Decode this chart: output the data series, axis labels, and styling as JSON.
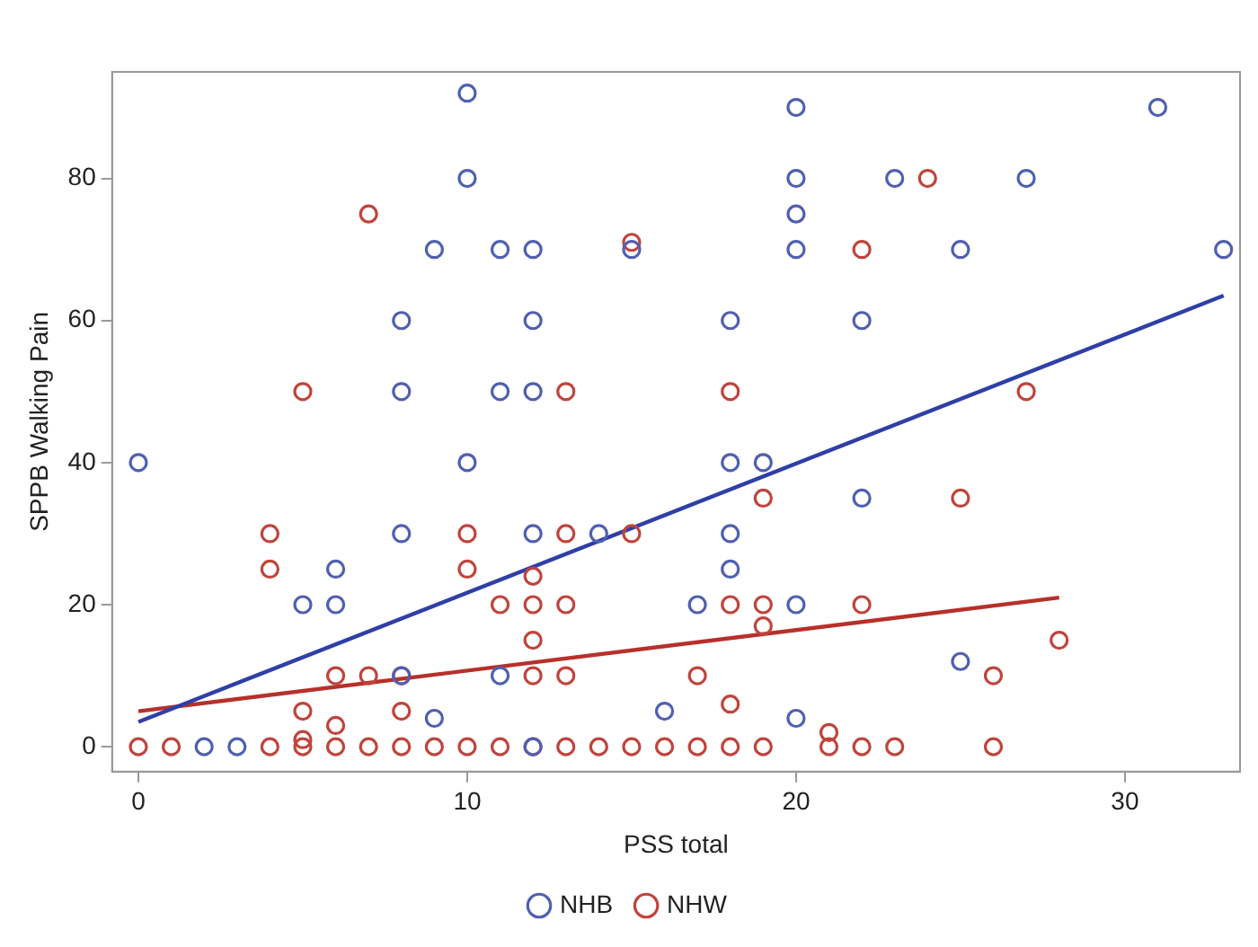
{
  "chart_data": {
    "type": "scatter",
    "xlabel": "PSS total",
    "ylabel": "SPPB Walking Pain",
    "xlim": [
      -0.8,
      33.5
    ],
    "ylim": [
      -3.5,
      95
    ],
    "xticks": [
      0,
      10,
      20,
      30
    ],
    "yticks": [
      0,
      20,
      40,
      60,
      80
    ],
    "grid": false,
    "legend": "bottom",
    "marker": "circle",
    "series": [
      {
        "name": "NHB",
        "color": "#5060b0",
        "x": [
          0,
          2,
          3,
          5,
          6,
          6,
          8,
          8,
          8,
          8,
          9,
          9,
          10,
          10,
          10,
          11,
          11,
          11,
          12,
          12,
          12,
          12,
          12,
          14,
          15,
          16,
          17,
          18,
          18,
          18,
          18,
          19,
          20,
          20,
          20,
          20,
          20,
          20,
          22,
          22,
          23,
          25,
          25,
          27,
          31,
          33
        ],
        "values": [
          40,
          0,
          0,
          20,
          25,
          20,
          60,
          50,
          30,
          10,
          70,
          4,
          92,
          80,
          40,
          70,
          50,
          10,
          70,
          60,
          50,
          30,
          0,
          30,
          70,
          5,
          20,
          60,
          40,
          30,
          25,
          40,
          90,
          80,
          75,
          70,
          20,
          4,
          60,
          35,
          80,
          70,
          12,
          80,
          90,
          70
        ]
      },
      {
        "name": "NHW",
        "color": "#c0443c",
        "x": [
          0,
          1,
          4,
          4,
          4,
          5,
          5,
          5,
          5,
          6,
          6,
          6,
          7,
          7,
          7,
          8,
          8,
          8,
          9,
          10,
          10,
          10,
          11,
          11,
          12,
          12,
          12,
          12,
          12,
          13,
          13,
          13,
          13,
          13,
          14,
          15,
          15,
          15,
          16,
          17,
          17,
          18,
          18,
          18,
          18,
          19,
          19,
          19,
          19,
          21,
          21,
          22,
          22,
          22,
          23,
          24,
          25,
          26,
          26,
          27,
          28
        ],
        "values": [
          0,
          0,
          30,
          25,
          0,
          50,
          5,
          1,
          0,
          10,
          3,
          0,
          75,
          10,
          0,
          10,
          5,
          0,
          0,
          30,
          25,
          0,
          20,
          0,
          24,
          20,
          15,
          10,
          0,
          50,
          30,
          20,
          10,
          0,
          0,
          71,
          30,
          0,
          0,
          10,
          0,
          50,
          20,
          6,
          0,
          35,
          20,
          17,
          0,
          2,
          0,
          70,
          20,
          0,
          0,
          80,
          35,
          10,
          0,
          50,
          15
        ]
      },
      {
        "type": "line",
        "marker": "none",
        "color": "#2f3fa8",
        "x": [
          0,
          33
        ],
        "values": [
          3.5,
          63.5
        ]
      },
      {
        "type": "line",
        "marker": "none",
        "color": "#b8302a",
        "x": [
          0,
          28
        ],
        "values": [
          5,
          21
        ]
      }
    ]
  }
}
